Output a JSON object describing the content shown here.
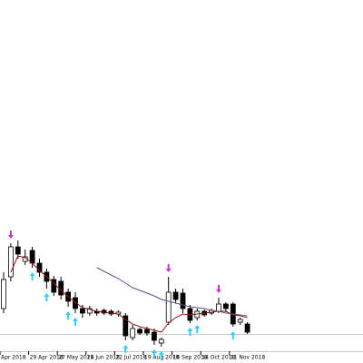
{
  "chart_data": {
    "type": "candlestick",
    "categories": [
      "Apr 2018",
      null,
      null,
      null,
      "29 Apr 2018",
      null,
      null,
      null,
      "27 May 2018",
      null,
      null,
      null,
      "24 Jun 2018",
      null,
      null,
      null,
      "22 Jul 2018",
      null,
      null,
      null,
      "19 Aug 2018",
      null,
      null,
      null,
      "16 Sep 2018",
      null,
      null,
      null,
      "14 Oct 2018",
      null,
      null,
      null,
      "11 Nov 2018",
      null,
      null
    ],
    "open": [
      60,
      95,
      128,
      112,
      124,
      110,
      100,
      92,
      90,
      78,
      72,
      60,
      55,
      57,
      58,
      57,
      54,
      52,
      28,
      37,
      37,
      34,
      22,
      45,
      78,
      77,
      60,
      50,
      57,
      55,
      57,
      65,
      65,
      45,
      43
    ],
    "high": [
      100,
      132,
      135,
      125,
      128,
      115,
      104,
      96,
      95,
      82,
      78,
      64,
      63,
      60,
      60,
      59,
      58,
      55,
      42,
      39,
      40,
      38,
      28,
      95,
      82,
      82,
      64,
      60,
      59,
      60,
      72,
      67,
      67,
      50,
      45
    ],
    "low": [
      55,
      90,
      115,
      108,
      105,
      95,
      82,
      74,
      70,
      62,
      55,
      50,
      52,
      52,
      53,
      52,
      51,
      25,
      25,
      31,
      30,
      20,
      18,
      42,
      66,
      55,
      44,
      47,
      51,
      53,
      55,
      56,
      40,
      42,
      32
    ],
    "close": [
      92,
      128,
      120,
      117,
      110,
      100,
      90,
      78,
      75,
      68,
      60,
      55,
      60,
      55,
      55,
      54,
      56,
      30,
      38,
      33,
      33,
      25,
      26,
      78,
      70,
      60,
      47,
      57,
      53,
      58,
      65,
      60,
      43,
      48,
      34
    ],
    "up_color": "#ffffff",
    "down_color": "#000000",
    "outline_color": "#000000",
    "series": [
      {
        "color": "#8b1a1a",
        "values": [
          null,
          100,
          118,
          116,
          110,
          102,
          95,
          88,
          80,
          73,
          67,
          61,
          59,
          57,
          56,
          55,
          54,
          48,
          43,
          40,
          38,
          36,
          34,
          44,
          50,
          54,
          53,
          54,
          55,
          56,
          57,
          57,
          53,
          52,
          50
        ]
      },
      {
        "color": "#6a4a8c",
        "values": [
          null,
          null,
          null,
          null,
          null,
          null,
          null,
          null,
          null,
          null,
          null,
          null,
          null,
          105,
          101,
          97,
          93,
          88,
          83,
          80,
          77,
          74,
          70,
          68,
          66,
          64,
          62,
          61,
          60,
          58,
          57,
          55,
          54,
          53,
          52
        ]
      }
    ],
    "signals_down": {
      "color": "#cc33cc",
      "values": [
        null,
        132,
        null,
        null,
        null,
        null,
        null,
        null,
        null,
        null,
        null,
        null,
        null,
        null,
        null,
        null,
        null,
        null,
        null,
        null,
        null,
        null,
        null,
        95,
        null,
        null,
        null,
        null,
        null,
        null,
        72,
        null,
        null,
        null,
        null
      ]
    },
    "signals_up": {
      "color": "#33ccff",
      "values": [
        null,
        null,
        null,
        null,
        105,
        null,
        82,
        null,
        null,
        62,
        55,
        null,
        null,
        null,
        null,
        null,
        null,
        25,
        null,
        null,
        null,
        20,
        18,
        null,
        null,
        null,
        44,
        47,
        null,
        null,
        null,
        null,
        40,
        null,
        null
      ]
    },
    "ylim": [
      0,
      400
    ]
  }
}
